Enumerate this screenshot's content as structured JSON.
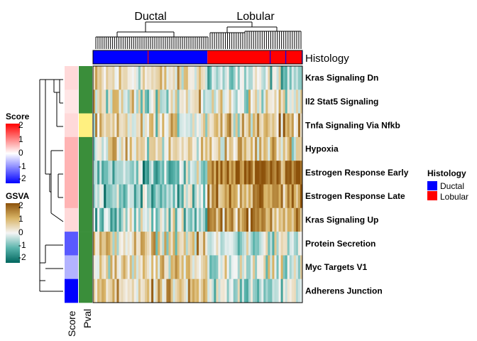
{
  "chart_data": {
    "type": "heatmap",
    "column_groups": [
      {
        "label": "Ductal",
        "count": 53
      },
      {
        "label": "Lobular",
        "count": 44
      }
    ],
    "row_labels": [
      "Kras Signaling Dn",
      "Il2 Stat5 Signaling",
      "Tnfa Signaling Via Nfkb",
      "Hypoxia",
      "Estrogen Response Early",
      "Estrogen Response Late",
      "Kras Signaling Up",
      "Protein Secretion",
      "Myc Targets V1",
      "Adherens Junction"
    ],
    "row_score": [
      0.3,
      0.2,
      0.3,
      0.6,
      0.6,
      0.6,
      0.3,
      -1.3,
      -0.6,
      -2.0
    ],
    "row_pval_class": [
      "low",
      "low",
      "high",
      "low",
      "low",
      "low",
      "low",
      "low",
      "low",
      "low"
    ],
    "row_group_mean_gsva": [
      {
        "ductal": 0.3,
        "lobular": -0.4
      },
      {
        "ductal": 0.1,
        "lobular": 0.1
      },
      {
        "ductal": 0.2,
        "lobular": 0.8
      },
      {
        "ductal": 0.3,
        "lobular": 0.6
      },
      {
        "ductal": -0.6,
        "lobular": 1.6
      },
      {
        "ductal": -0.5,
        "lobular": 1.2
      },
      {
        "ductal": -0.4,
        "lobular": 1.2
      },
      {
        "ductal": 0.4,
        "lobular": -0.3
      },
      {
        "ductal": 0.3,
        "lobular": -0.2
      },
      {
        "ductal": 0.5,
        "lobular": -0.3
      }
    ],
    "histology_annotation_label": "Histology",
    "annotation_labels": [
      "Score",
      "Pval"
    ],
    "legends": [
      {
        "title": "Score",
        "ticks": [
          "2",
          "1",
          "0",
          "-1",
          "-2"
        ],
        "colors": [
          "#FF0000",
          "#FFFFFF",
          "#0000FF"
        ]
      },
      {
        "title": "GSVA",
        "ticks": [
          "2",
          "1",
          "0",
          "-1",
          "-2"
        ],
        "colors": [
          "#8C510A",
          "#F5F5F5",
          "#01665E"
        ]
      },
      {
        "title": "Histology",
        "entries": [
          {
            "label": "Ductal",
            "color": "#0000FF"
          },
          {
            "label": "Lobular",
            "color": "#FF0000"
          }
        ]
      }
    ],
    "pval_colors": {
      "low": "#3A8E3A",
      "high": "#FFF080"
    }
  }
}
